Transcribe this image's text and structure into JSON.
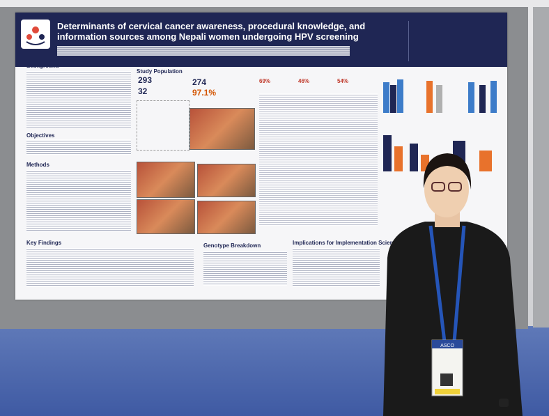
{
  "poster": {
    "title": "Determinants of cervical cancer awareness, procedural knowledge, and information sources among Nepali women undergoing HPV screening",
    "sections": [
      "Background",
      "Study Population",
      "Objectives",
      "Methods",
      "Key Findings",
      "Genotype Breakdown",
      "Implications for Implementation Science"
    ],
    "stats": [
      "293",
      "274",
      "32",
      "97.1%"
    ],
    "percentages": [
      "69%",
      "46%",
      "54%"
    ]
  },
  "badge": {
    "org": "ASCO"
  }
}
